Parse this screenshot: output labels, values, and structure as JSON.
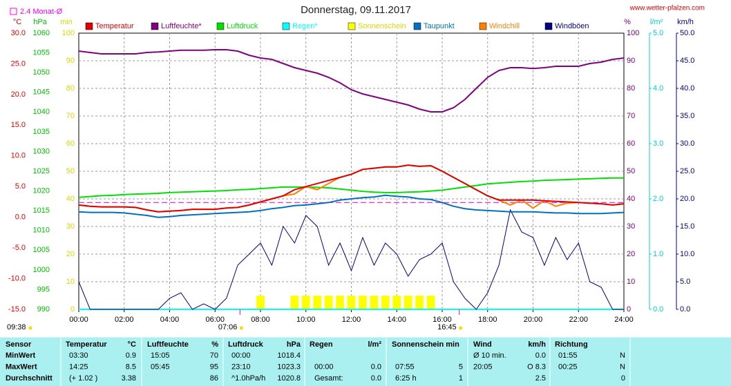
{
  "header": {
    "title": "Donnerstag, 09.11.2017",
    "site": "www.wetter-pfalzen.com"
  },
  "chart_data": {
    "type": "line",
    "grid": true,
    "xlim": [
      0,
      24
    ],
    "xticks": [
      {
        "value": 0,
        "label": "00:00"
      },
      {
        "value": 2,
        "label": "02:00"
      },
      {
        "value": 4,
        "label": "04:00"
      },
      {
        "value": 6,
        "label": "06:00"
      },
      {
        "value": 8,
        "label": "08:00"
      },
      {
        "value": 10,
        "label": "10:00"
      },
      {
        "value": 12,
        "label": "12:00"
      },
      {
        "value": 14,
        "label": "14:00"
      },
      {
        "value": 16,
        "label": "16:00"
      },
      {
        "value": 18,
        "label": "18:00"
      },
      {
        "value": 20,
        "label": "20:00"
      },
      {
        "value": 22,
        "label": "22:00"
      },
      {
        "value": 24,
        "label": "24:00"
      }
    ],
    "axes": [
      {
        "unit": "°C",
        "color": "#e00000",
        "lim": [
          -15,
          30
        ],
        "ticks": [
          {
            "value": 30,
            "label": "30.0"
          },
          {
            "value": 25,
            "label": "25.0"
          },
          {
            "value": 20,
            "label": "20.0"
          },
          {
            "value": 15,
            "label": "15.0"
          },
          {
            "value": 10,
            "label": "10.0"
          },
          {
            "value": 5,
            "label": "5.0"
          },
          {
            "value": 0,
            "label": "0.0"
          },
          {
            "value": -5,
            "label": "-5.0"
          },
          {
            "value": -10,
            "label": "-10.0"
          },
          {
            "value": -15,
            "label": "-15.0"
          }
        ]
      },
      {
        "unit": "hPa",
        "color": "#00c000",
        "lim": [
          990,
          1060
        ],
        "ticks": [
          1060,
          1055,
          1050,
          1045,
          1040,
          1035,
          1030,
          1025,
          1020,
          1015,
          1010,
          1005,
          1000,
          995,
          990
        ]
      },
      {
        "unit": "min",
        "color": "#d8d800",
        "lim": [
          0,
          100
        ],
        "ticks": [
          100,
          90,
          80,
          70,
          60,
          50,
          40,
          30,
          20,
          10,
          0
        ]
      },
      {
        "unit": "%",
        "color": "#800080",
        "lim": [
          0,
          100
        ],
        "ticks": [
          100,
          90,
          80,
          70,
          60,
          50,
          40,
          30,
          20,
          10,
          0
        ]
      },
      {
        "unit": "l/m²",
        "color": "#00d0d0",
        "lim": [
          0,
          5
        ],
        "ticks": [
          {
            "value": 5,
            "label": "5.0"
          },
          {
            "value": 4,
            "label": "4.0"
          },
          {
            "value": 3,
            "label": "3.0"
          },
          {
            "value": 2,
            "label": "2.0"
          },
          {
            "value": 1,
            "label": "1.0"
          },
          {
            "value": 0,
            "label": "0.0"
          }
        ]
      },
      {
        "unit": "km/h",
        "color": "#000080",
        "lim": [
          0,
          50
        ],
        "ticks": [
          {
            "value": 50,
            "label": "50.0"
          },
          {
            "value": 45,
            "label": "45.0"
          },
          {
            "value": 40,
            "label": "40.0"
          },
          {
            "value": 35,
            "label": "35.0"
          },
          {
            "value": 30,
            "label": "30.0"
          },
          {
            "value": 25,
            "label": "25.0"
          },
          {
            "value": 20,
            "label": "20.0"
          },
          {
            "value": 15,
            "label": "15.0"
          },
          {
            "value": 10,
            "label": "10.0"
          },
          {
            "value": 5,
            "label": "5.0"
          },
          {
            "value": 0,
            "label": "0.0"
          }
        ]
      }
    ],
    "x": [
      0,
      0.5,
      1,
      1.5,
      2,
      2.5,
      3,
      3.5,
      4,
      4.5,
      5,
      5.5,
      6,
      6.5,
      7,
      7.5,
      8,
      8.5,
      9,
      9.5,
      10,
      10.5,
      11,
      11.5,
      12,
      12.5,
      13,
      13.5,
      14,
      14.5,
      15,
      15.5,
      16,
      16.5,
      17,
      17.5,
      18,
      18.5,
      19,
      19.5,
      20,
      20.5,
      21,
      21.5,
      22,
      22.5,
      23,
      23.5,
      24
    ],
    "series": [
      {
        "name": "Sonnenschein",
        "color": "#ffff00",
        "axis": "min",
        "style": "bar",
        "values": [
          0,
          0,
          0,
          0,
          0,
          0,
          0,
          0,
          0,
          0,
          0,
          0,
          0,
          0,
          0,
          0,
          5,
          0,
          0,
          5,
          5,
          5,
          5,
          5,
          5,
          5,
          5,
          5,
          5,
          5,
          5,
          5,
          0,
          0,
          0,
          0,
          0,
          0,
          0,
          0,
          0,
          0,
          0,
          0,
          0,
          0,
          0,
          0,
          0
        ]
      },
      {
        "name": "Regen*",
        "color": "#00ffff",
        "axis": "l/m²",
        "values": [
          0,
          0,
          0,
          0,
          0,
          0,
          0,
          0,
          0,
          0,
          0,
          0,
          0,
          0,
          0,
          0,
          0,
          0,
          0,
          0,
          0,
          0,
          0,
          0,
          0,
          0,
          0,
          0,
          0,
          0,
          0,
          0,
          0,
          0,
          0,
          0,
          0,
          0,
          0,
          0,
          0,
          0,
          0,
          0,
          0,
          0,
          0,
          0,
          0
        ]
      },
      {
        "name": "Windböen",
        "color": "#000080",
        "axis": "km/h",
        "values": [
          5,
          0,
          0,
          0,
          0,
          0,
          0,
          0,
          2,
          3,
          0,
          1,
          0,
          2,
          8,
          10,
          12,
          8,
          15,
          12,
          17,
          15,
          8,
          12,
          7,
          13,
          8,
          12,
          10,
          6,
          9,
          10,
          12,
          5,
          2,
          0,
          3,
          8,
          18,
          14,
          13,
          8,
          13,
          9,
          12,
          5,
          4,
          0,
          0
        ]
      },
      {
        "name": "Luftdruck",
        "color": "#00e000",
        "axis": "hPa",
        "values": [
          1018.4,
          1018.6,
          1018.8,
          1018.9,
          1019.1,
          1019.2,
          1019.3,
          1019.4,
          1019.6,
          1019.7,
          1019.8,
          1019.9,
          1020.0,
          1020.1,
          1020.3,
          1020.4,
          1020.6,
          1020.8,
          1021.0,
          1021.0,
          1021.0,
          1020.9,
          1020.8,
          1020.5,
          1020.2,
          1019.9,
          1019.7,
          1019.6,
          1019.6,
          1019.7,
          1019.8,
          1020.0,
          1020.2,
          1020.6,
          1021.0,
          1021.4,
          1021.8,
          1022.0,
          1022.2,
          1022.4,
          1022.5,
          1022.7,
          1022.8,
          1022.9,
          1023.0,
          1023.1,
          1023.2,
          1023.3,
          1023.3
        ]
      },
      {
        "name": "Taupunkt",
        "color": "#0070c0",
        "axis": "°C",
        "values": [
          0.9,
          0.8,
          0.8,
          0.8,
          0.7,
          0.5,
          0.3,
          0.0,
          0.1,
          0.3,
          0.4,
          0.5,
          0.6,
          0.7,
          0.8,
          0.9,
          1.1,
          1.4,
          1.6,
          1.9,
          2.0,
          2.2,
          2.4,
          2.8,
          3.0,
          3.2,
          3.3,
          3.6,
          3.4,
          3.3,
          3.0,
          2.9,
          2.4,
          1.8,
          1.4,
          1.2,
          1.1,
          1.0,
          0.9,
          0.9,
          0.9,
          0.8,
          0.7,
          0.7,
          0.6,
          0.6,
          0.6,
          0.7,
          0.8
        ]
      },
      {
        "name": "Windchill",
        "color": "#ff8000",
        "axis": "°C",
        "values": [
          2.0,
          1.8,
          1.7,
          1.7,
          1.7,
          1.6,
          1.2,
          0.9,
          1.0,
          1.1,
          1.3,
          1.3,
          1.3,
          1.5,
          1.6,
          2.0,
          2.5,
          3.0,
          3.5,
          3.8,
          5.0,
          4.5,
          5.5,
          6.5,
          7.0,
          7.8,
          8.0,
          8.2,
          8.2,
          8.5,
          8.3,
          8.4,
          7.5,
          6.5,
          5.5,
          4.5,
          3.5,
          2.8,
          2.0,
          2.8,
          1.5,
          2.7,
          1.8,
          2.3,
          2.4,
          2.3,
          2.2,
          2.0,
          2.2
        ]
      },
      {
        "name": "Temperatur",
        "color": "#e00000",
        "axis": "°C",
        "values": [
          2.0,
          1.8,
          1.7,
          1.7,
          1.7,
          1.6,
          1.2,
          0.9,
          1.0,
          1.1,
          1.3,
          1.3,
          1.3,
          1.5,
          1.6,
          2.0,
          2.5,
          3.0,
          3.5,
          4.5,
          5.0,
          5.5,
          6.0,
          6.5,
          7.0,
          7.8,
          8.0,
          8.2,
          8.2,
          8.5,
          8.3,
          8.4,
          7.5,
          6.5,
          5.5,
          4.5,
          3.5,
          2.8,
          2.8,
          2.8,
          2.8,
          2.7,
          2.6,
          2.5,
          2.4,
          2.3,
          2.2,
          2.0,
          2.2
        ]
      },
      {
        "name": "Luftfeuchte*",
        "color": "#800080",
        "axis": "%",
        "values": [
          93.5,
          93,
          92.5,
          92.5,
          92.5,
          92.5,
          93,
          93.2,
          93.5,
          93.8,
          93.8,
          93.8,
          94,
          94,
          93.5,
          92,
          91,
          90.5,
          89,
          87.5,
          86.5,
          85.5,
          84,
          82,
          79.5,
          78,
          77,
          76,
          75,
          74,
          72.5,
          71.5,
          71.5,
          73,
          76,
          80,
          84,
          86.5,
          87.5,
          87.5,
          87.2,
          87.5,
          88,
          88,
          88,
          89,
          89.5,
          90.5,
          91
        ]
      }
    ],
    "legend_order": [
      "Temperatur",
      "Luftfeuchte*",
      "Luftdruck",
      "Regen*",
      "Sonnenschein",
      "Taupunkt",
      "Windchill",
      "Windböen"
    ],
    "reference": {
      "label": "2.4 Monat-Ø",
      "value": 2.4,
      "axis": "°C",
      "color": "#ff00ff"
    },
    "day_length": "09:38",
    "annotations": [
      {
        "label": "07:06",
        "x": 7.1
      },
      {
        "label": "16:45",
        "x": 16.75
      }
    ]
  },
  "table": {
    "header": [
      "Sensor",
      "Temperatur",
      "°C",
      "Luftfeuchte",
      "%",
      "Luftdruck",
      "hPa",
      "Regen",
      "l/m²",
      "Sonnenschein min",
      null,
      "Wind",
      "km/h",
      "Richtung",
      null
    ],
    "rows": [
      [
        "MinWert",
        "03:30",
        "0.9",
        "15:05",
        "70",
        "00:00",
        "1018.4",
        null,
        null,
        null,
        null,
        "Ø 10 min.",
        "0.0",
        "01:55",
        "N"
      ],
      [
        "MaxWert",
        "14:25",
        "8.5",
        "05:45",
        "95",
        "23:10",
        "1023.3",
        "00:00",
        "0.0",
        "07:55",
        "5",
        "20:05",
        "O 8.3",
        "00:25",
        "N"
      ],
      [
        "Durchschnitt",
        "(+ 1.02 )",
        "3.38",
        null,
        "86",
        "^1.0hPa/h",
        "1020.8",
        "Gesamt:",
        "0.0",
        "6:25 h",
        "1",
        null,
        "2.5",
        null,
        "0"
      ]
    ]
  }
}
